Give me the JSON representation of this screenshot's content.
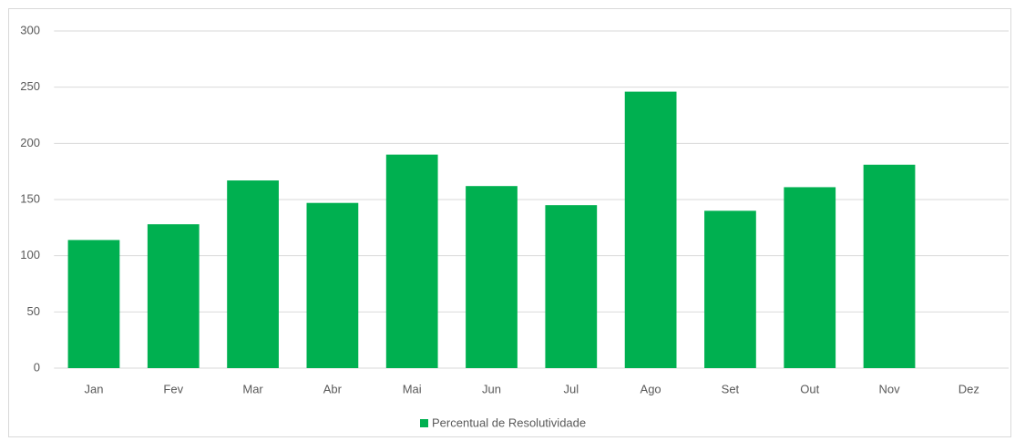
{
  "chart_data": {
    "type": "bar",
    "categories": [
      "Jan",
      "Fev",
      "Mar",
      "Abr",
      "Mai",
      "Jun",
      "Jul",
      "Ago",
      "Set",
      "Out",
      "Nov",
      "Dez"
    ],
    "series": [
      {
        "name": "Percentual de Resolutividade",
        "color": "#00b050",
        "values": [
          114,
          128,
          167,
          147,
          190,
          162,
          145,
          246,
          140,
          161,
          181,
          null
        ]
      }
    ],
    "ylim": [
      0,
      300
    ],
    "yticks": [
      0,
      50,
      100,
      150,
      200,
      250,
      300
    ],
    "grid": true,
    "legend": "bottom"
  }
}
